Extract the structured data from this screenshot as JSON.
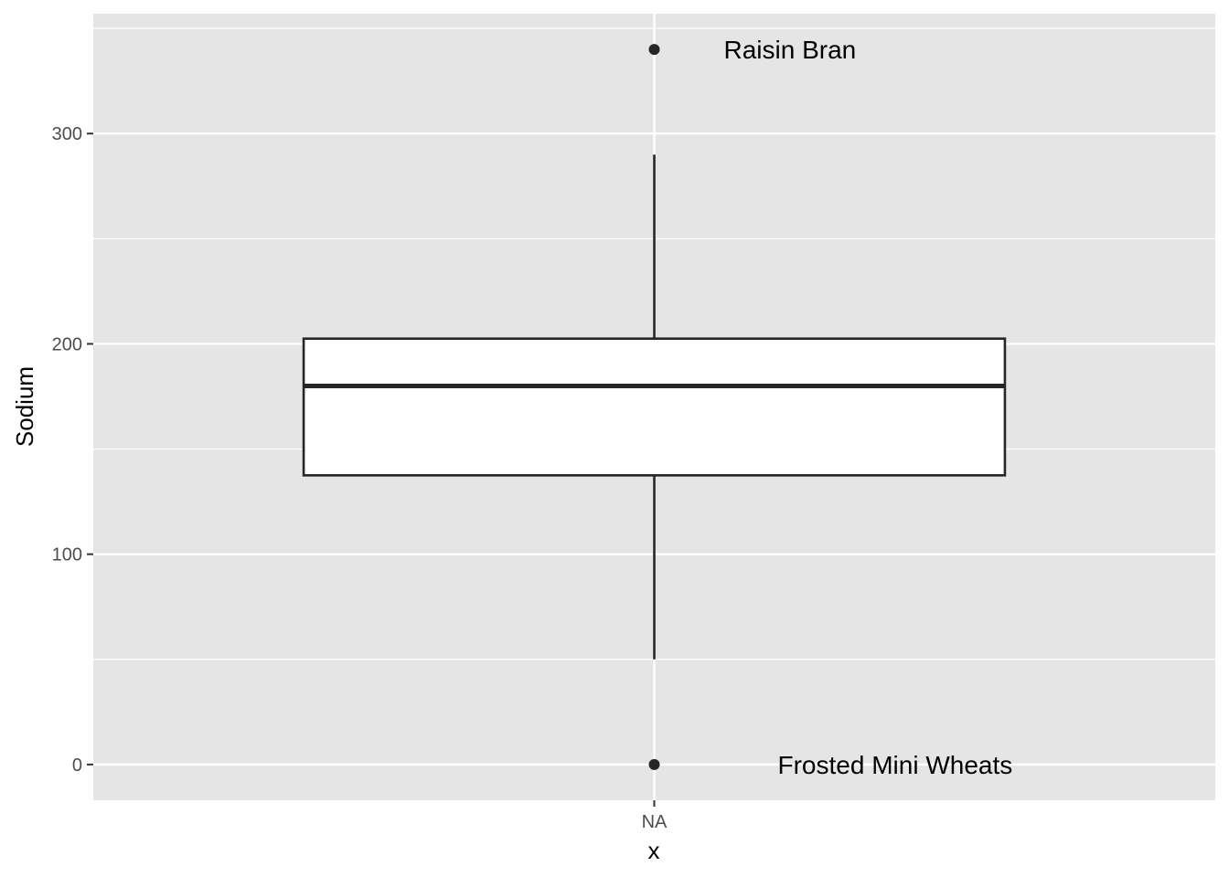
{
  "chart_data": {
    "type": "box",
    "title": "",
    "xlabel": "x",
    "ylabel": "Sodium",
    "categories": [
      "NA"
    ],
    "ylim": [
      -17,
      357
    ],
    "yticks": [
      0,
      100,
      200,
      300
    ],
    "ytick_labels": [
      "0",
      "100",
      "200",
      "300"
    ],
    "grid": true,
    "legend": "none",
    "box": {
      "category": "NA",
      "q1": 137.5,
      "median": 180,
      "q3": 202.5,
      "whisker_low": 50,
      "whisker_high": 290
    },
    "outliers": [
      {
        "value": 340,
        "label": "Raisin Bran"
      },
      {
        "value": 0,
        "label": "Frosted Mini Wheats"
      }
    ],
    "colors": {
      "panel": "#e5e5e5",
      "grid": "#ffffff",
      "box_fill": "#ffffff",
      "box_line": "#262626",
      "point": "#262626"
    }
  }
}
